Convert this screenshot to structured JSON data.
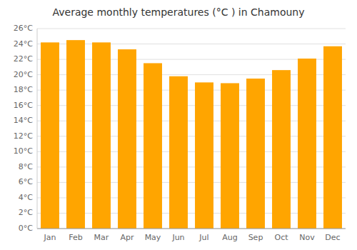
{
  "chart_data": {
    "type": "bar",
    "title": "Average monthly temperatures (°C ) in Chamouny",
    "categories": [
      "Jan",
      "Feb",
      "Mar",
      "Apr",
      "May",
      "Jun",
      "Jul",
      "Aug",
      "Sep",
      "Oct",
      "Nov",
      "Dec"
    ],
    "values": [
      24.2,
      24.5,
      24.2,
      23.3,
      21.5,
      19.8,
      19.0,
      18.9,
      19.5,
      20.6,
      22.1,
      23.7
    ],
    "color": "#FFA500",
    "ylim": [
      0,
      26
    ],
    "yticks": [
      {
        "value": 0,
        "label": "0°C"
      },
      {
        "value": 2,
        "label": "2°C"
      },
      {
        "value": 4,
        "label": "4°C"
      },
      {
        "value": 6,
        "label": "6°C"
      },
      {
        "value": 8,
        "label": "8°C"
      },
      {
        "value": 10,
        "label": "10°C"
      },
      {
        "value": 12,
        "label": "12°C"
      },
      {
        "value": 14,
        "label": "14°C"
      },
      {
        "value": 16,
        "label": "16°C"
      },
      {
        "value": 18,
        "label": "18°C"
      },
      {
        "value": 20,
        "label": "20°C"
      },
      {
        "value": 22,
        "label": "22°C"
      },
      {
        "value": 24,
        "label": "24°C"
      },
      {
        "value": 26,
        "label": "26°C"
      }
    ],
    "grid": true
  }
}
